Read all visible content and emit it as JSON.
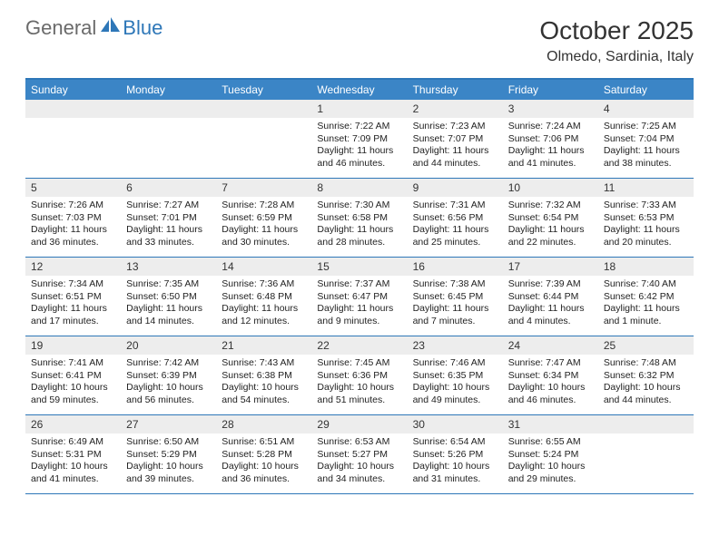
{
  "logo": {
    "general": "General",
    "blue": "Blue"
  },
  "title": "October 2025",
  "location": "Olmedo, Sardinia, Italy",
  "colors": {
    "header_bar": "#3b85c6",
    "accent_border": "#2e77b8",
    "daynum_bg": "#ededed",
    "text": "#333333",
    "logo_gray": "#6a6a6a"
  },
  "fonts": {
    "title_size": 28,
    "location_size": 16,
    "weekday_size": 12,
    "cell_size": 10.5
  },
  "weekdays": [
    "Sunday",
    "Monday",
    "Tuesday",
    "Wednesday",
    "Thursday",
    "Friday",
    "Saturday"
  ],
  "weeks": [
    [
      {
        "empty": true
      },
      {
        "empty": true
      },
      {
        "empty": true
      },
      {
        "day": "1",
        "sunrise": "Sunrise: 7:22 AM",
        "sunset": "Sunset: 7:09 PM",
        "daylight": "Daylight: 11 hours and 46 minutes."
      },
      {
        "day": "2",
        "sunrise": "Sunrise: 7:23 AM",
        "sunset": "Sunset: 7:07 PM",
        "daylight": "Daylight: 11 hours and 44 minutes."
      },
      {
        "day": "3",
        "sunrise": "Sunrise: 7:24 AM",
        "sunset": "Sunset: 7:06 PM",
        "daylight": "Daylight: 11 hours and 41 minutes."
      },
      {
        "day": "4",
        "sunrise": "Sunrise: 7:25 AM",
        "sunset": "Sunset: 7:04 PM",
        "daylight": "Daylight: 11 hours and 38 minutes."
      }
    ],
    [
      {
        "day": "5",
        "sunrise": "Sunrise: 7:26 AM",
        "sunset": "Sunset: 7:03 PM",
        "daylight": "Daylight: 11 hours and 36 minutes."
      },
      {
        "day": "6",
        "sunrise": "Sunrise: 7:27 AM",
        "sunset": "Sunset: 7:01 PM",
        "daylight": "Daylight: 11 hours and 33 minutes."
      },
      {
        "day": "7",
        "sunrise": "Sunrise: 7:28 AM",
        "sunset": "Sunset: 6:59 PM",
        "daylight": "Daylight: 11 hours and 30 minutes."
      },
      {
        "day": "8",
        "sunrise": "Sunrise: 7:30 AM",
        "sunset": "Sunset: 6:58 PM",
        "daylight": "Daylight: 11 hours and 28 minutes."
      },
      {
        "day": "9",
        "sunrise": "Sunrise: 7:31 AM",
        "sunset": "Sunset: 6:56 PM",
        "daylight": "Daylight: 11 hours and 25 minutes."
      },
      {
        "day": "10",
        "sunrise": "Sunrise: 7:32 AM",
        "sunset": "Sunset: 6:54 PM",
        "daylight": "Daylight: 11 hours and 22 minutes."
      },
      {
        "day": "11",
        "sunrise": "Sunrise: 7:33 AM",
        "sunset": "Sunset: 6:53 PM",
        "daylight": "Daylight: 11 hours and 20 minutes."
      }
    ],
    [
      {
        "day": "12",
        "sunrise": "Sunrise: 7:34 AM",
        "sunset": "Sunset: 6:51 PM",
        "daylight": "Daylight: 11 hours and 17 minutes."
      },
      {
        "day": "13",
        "sunrise": "Sunrise: 7:35 AM",
        "sunset": "Sunset: 6:50 PM",
        "daylight": "Daylight: 11 hours and 14 minutes."
      },
      {
        "day": "14",
        "sunrise": "Sunrise: 7:36 AM",
        "sunset": "Sunset: 6:48 PM",
        "daylight": "Daylight: 11 hours and 12 minutes."
      },
      {
        "day": "15",
        "sunrise": "Sunrise: 7:37 AM",
        "sunset": "Sunset: 6:47 PM",
        "daylight": "Daylight: 11 hours and 9 minutes."
      },
      {
        "day": "16",
        "sunrise": "Sunrise: 7:38 AM",
        "sunset": "Sunset: 6:45 PM",
        "daylight": "Daylight: 11 hours and 7 minutes."
      },
      {
        "day": "17",
        "sunrise": "Sunrise: 7:39 AM",
        "sunset": "Sunset: 6:44 PM",
        "daylight": "Daylight: 11 hours and 4 minutes."
      },
      {
        "day": "18",
        "sunrise": "Sunrise: 7:40 AM",
        "sunset": "Sunset: 6:42 PM",
        "daylight": "Daylight: 11 hours and 1 minute."
      }
    ],
    [
      {
        "day": "19",
        "sunrise": "Sunrise: 7:41 AM",
        "sunset": "Sunset: 6:41 PM",
        "daylight": "Daylight: 10 hours and 59 minutes."
      },
      {
        "day": "20",
        "sunrise": "Sunrise: 7:42 AM",
        "sunset": "Sunset: 6:39 PM",
        "daylight": "Daylight: 10 hours and 56 minutes."
      },
      {
        "day": "21",
        "sunrise": "Sunrise: 7:43 AM",
        "sunset": "Sunset: 6:38 PM",
        "daylight": "Daylight: 10 hours and 54 minutes."
      },
      {
        "day": "22",
        "sunrise": "Sunrise: 7:45 AM",
        "sunset": "Sunset: 6:36 PM",
        "daylight": "Daylight: 10 hours and 51 minutes."
      },
      {
        "day": "23",
        "sunrise": "Sunrise: 7:46 AM",
        "sunset": "Sunset: 6:35 PM",
        "daylight": "Daylight: 10 hours and 49 minutes."
      },
      {
        "day": "24",
        "sunrise": "Sunrise: 7:47 AM",
        "sunset": "Sunset: 6:34 PM",
        "daylight": "Daylight: 10 hours and 46 minutes."
      },
      {
        "day": "25",
        "sunrise": "Sunrise: 7:48 AM",
        "sunset": "Sunset: 6:32 PM",
        "daylight": "Daylight: 10 hours and 44 minutes."
      }
    ],
    [
      {
        "day": "26",
        "sunrise": "Sunrise: 6:49 AM",
        "sunset": "Sunset: 5:31 PM",
        "daylight": "Daylight: 10 hours and 41 minutes."
      },
      {
        "day": "27",
        "sunrise": "Sunrise: 6:50 AM",
        "sunset": "Sunset: 5:29 PM",
        "daylight": "Daylight: 10 hours and 39 minutes."
      },
      {
        "day": "28",
        "sunrise": "Sunrise: 6:51 AM",
        "sunset": "Sunset: 5:28 PM",
        "daylight": "Daylight: 10 hours and 36 minutes."
      },
      {
        "day": "29",
        "sunrise": "Sunrise: 6:53 AM",
        "sunset": "Sunset: 5:27 PM",
        "daylight": "Daylight: 10 hours and 34 minutes."
      },
      {
        "day": "30",
        "sunrise": "Sunrise: 6:54 AM",
        "sunset": "Sunset: 5:26 PM",
        "daylight": "Daylight: 10 hours and 31 minutes."
      },
      {
        "day": "31",
        "sunrise": "Sunrise: 6:55 AM",
        "sunset": "Sunset: 5:24 PM",
        "daylight": "Daylight: 10 hours and 29 minutes."
      },
      {
        "empty": true
      }
    ]
  ]
}
